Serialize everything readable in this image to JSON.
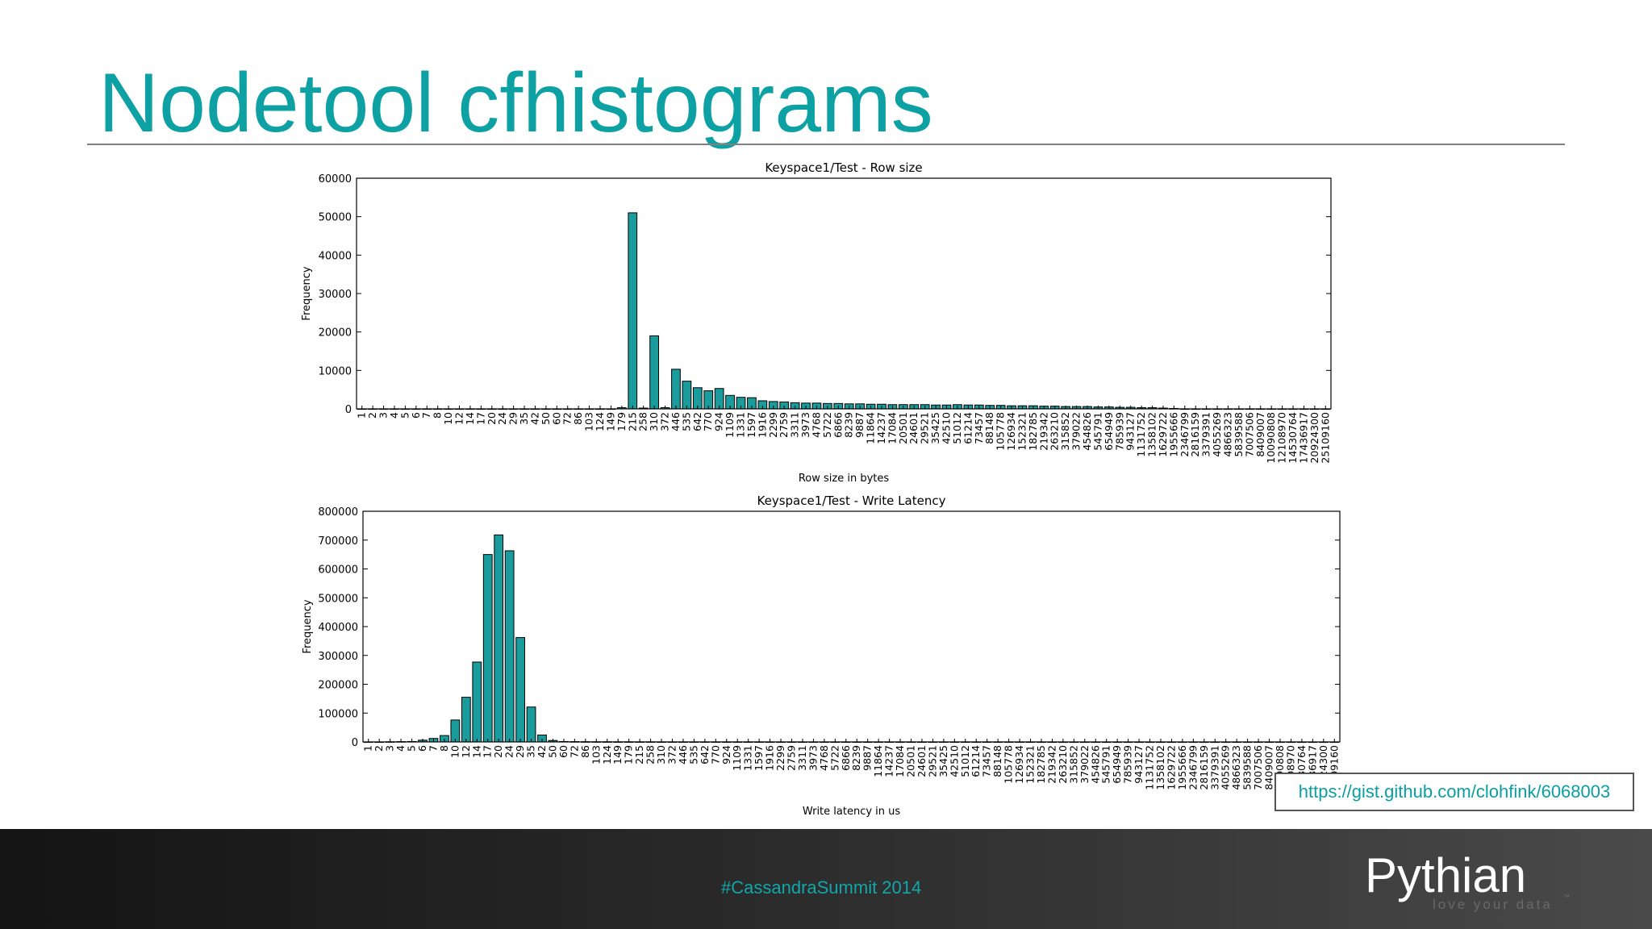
{
  "slide": {
    "title": "Nodetool cfhistograms",
    "link": "https://gist.github.com/clohfink/6068003",
    "footer_hashtag": "#CassandraSummit 2014",
    "logo": {
      "name": "Pythian",
      "tagline": "love your data",
      "mark": "™"
    },
    "colors": {
      "accent": "#0ea1a3",
      "bar": "#1a9b9c",
      "footer": "#1e1e1e"
    }
  },
  "chart_data": [
    {
      "type": "bar",
      "title": "Keyspace1/Test - Row size",
      "xlabel": "Row size in bytes",
      "ylabel": "Frequency",
      "ylim": [
        0,
        60000
      ],
      "yticks": [
        0,
        10000,
        20000,
        30000,
        40000,
        50000,
        60000
      ],
      "grid": false,
      "categories": [
        "1",
        "2",
        "3",
        "4",
        "5",
        "6",
        "7",
        "8",
        "10",
        "12",
        "14",
        "17",
        "20",
        "24",
        "29",
        "35",
        "42",
        "50",
        "60",
        "72",
        "86",
        "103",
        "124",
        "149",
        "179",
        "215",
        "258",
        "310",
        "372",
        "446",
        "535",
        "642",
        "770",
        "924",
        "1109",
        "1331",
        "1597",
        "1916",
        "2299",
        "2759",
        "3311",
        "3973",
        "4768",
        "5722",
        "6866",
        "8239",
        "9887",
        "11864",
        "14237",
        "17084",
        "20501",
        "24601",
        "29521",
        "35425",
        "42510",
        "51012",
        "61214",
        "73457",
        "88148",
        "105778",
        "126934",
        "152321",
        "182785",
        "219342",
        "263210",
        "315852",
        "379022",
        "454826",
        "545791",
        "654949",
        "785939",
        "943127",
        "1131752",
        "1358102",
        "1629722",
        "1955666",
        "2346799",
        "2816159",
        "3379391",
        "4055269",
        "4866323",
        "5839588",
        "7007506",
        "8409007",
        "10090808",
        "12108970",
        "14530764",
        "17436917",
        "20924300",
        "25109160"
      ],
      "values": [
        0,
        0,
        0,
        0,
        0,
        0,
        0,
        0,
        0,
        0,
        0,
        0,
        0,
        0,
        0,
        0,
        0,
        0,
        0,
        0,
        0,
        0,
        0,
        0,
        300,
        51000,
        200,
        19000,
        300,
        10300,
        7200,
        5500,
        4700,
        5300,
        3500,
        3000,
        2900,
        2100,
        1900,
        1800,
        1600,
        1500,
        1500,
        1400,
        1400,
        1300,
        1300,
        1200,
        1200,
        1100,
        1100,
        1100,
        1100,
        1000,
        1000,
        1100,
        1000,
        1000,
        900,
        900,
        800,
        800,
        800,
        700,
        700,
        600,
        600,
        600,
        500,
        500,
        400,
        400,
        300,
        300,
        200,
        100,
        0,
        0,
        0,
        0,
        0,
        0,
        0,
        0,
        0,
        0,
        0,
        0,
        0,
        0
      ]
    },
    {
      "type": "bar",
      "title": "Keyspace1/Test - Write Latency",
      "xlabel": "Write latency in us",
      "ylabel": "Frequency",
      "ylim": [
        0,
        800000
      ],
      "yticks": [
        0,
        100000,
        200000,
        300000,
        400000,
        500000,
        600000,
        700000,
        800000
      ],
      "grid": false,
      "categories": [
        "1",
        "2",
        "3",
        "4",
        "5",
        "6",
        "7",
        "8",
        "10",
        "12",
        "14",
        "17",
        "20",
        "24",
        "29",
        "35",
        "42",
        "50",
        "60",
        "72",
        "86",
        "103",
        "124",
        "149",
        "179",
        "215",
        "258",
        "310",
        "372",
        "446",
        "535",
        "642",
        "770",
        "924",
        "1109",
        "1331",
        "1597",
        "1916",
        "2299",
        "2759",
        "3311",
        "3973",
        "4768",
        "5722",
        "6866",
        "8239",
        "9887",
        "11864",
        "14237",
        "17084",
        "20501",
        "24601",
        "29521",
        "35425",
        "42510",
        "51012",
        "61214",
        "73457",
        "88148",
        "105778",
        "126934",
        "152321",
        "182785",
        "219342",
        "263210",
        "315852",
        "379022",
        "454826",
        "545791",
        "654949",
        "785939",
        "943127",
        "1131752",
        "1358102",
        "1629722",
        "1955666",
        "2346799",
        "2816159",
        "3379391",
        "4055269",
        "4866323",
        "5839588",
        "7007506",
        "8409007",
        "10090808",
        "12108970",
        "14530764",
        "17436917",
        "20924300",
        "25109160"
      ],
      "values": [
        0,
        0,
        500,
        1000,
        1500,
        6000,
        12000,
        22000,
        76000,
        155000,
        277000,
        650000,
        718000,
        663000,
        362000,
        121000,
        24000,
        5000,
        1500,
        1000,
        700,
        600,
        500,
        400,
        400,
        300,
        300,
        200,
        200,
        200,
        200,
        200,
        200,
        200,
        200,
        200,
        200,
        100,
        100,
        100,
        100,
        100,
        100,
        100,
        100,
        100,
        100,
        100,
        100,
        100,
        100,
        100,
        100,
        100,
        100,
        100,
        100,
        100,
        100,
        100,
        100,
        100,
        100,
        0,
        0,
        0,
        0,
        0,
        0,
        0,
        0,
        0,
        0,
        0,
        0,
        0,
        0,
        0,
        0,
        0,
        0,
        0,
        0,
        0,
        0,
        0,
        0,
        0,
        0,
        0
      ]
    }
  ]
}
